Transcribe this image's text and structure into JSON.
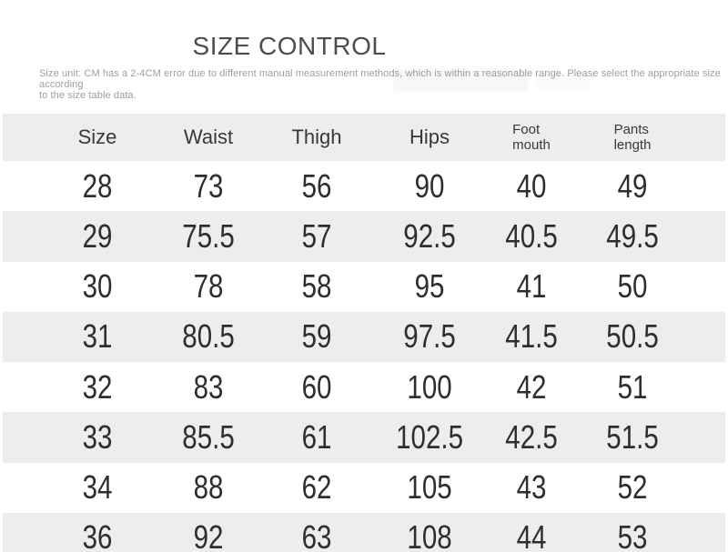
{
  "header": {
    "title": "SIZE CONTROL",
    "note_lines": [
      "Size unit: CM has a 2-4CM error due to different manual measurement methods, which is within a reasonable range. Please select the appropriate size according",
      "to the size table data."
    ]
  },
  "table": {
    "columns": [
      {
        "key": "size",
        "lines": [
          "Size"
        ]
      },
      {
        "key": "waist",
        "lines": [
          "Waist"
        ]
      },
      {
        "key": "thigh",
        "lines": [
          "Thigh"
        ]
      },
      {
        "key": "hips",
        "lines": [
          "Hips"
        ]
      },
      {
        "key": "foot-mouth",
        "lines": [
          "Foot",
          "mouth"
        ]
      },
      {
        "key": "pants-length",
        "lines": [
          "Pants",
          "length"
        ]
      }
    ]
  },
  "chart_data": {
    "type": "table",
    "title": "SIZE CONTROL",
    "unit": "CM",
    "columns": [
      "Size",
      "Waist",
      "Thigh",
      "Hips",
      "Foot mouth",
      "Pants length"
    ],
    "rows": [
      [
        28,
        73,
        56,
        90,
        40,
        49
      ],
      [
        29,
        75.5,
        57,
        92.5,
        40.5,
        49.5
      ],
      [
        30,
        78,
        58,
        95,
        41,
        50
      ],
      [
        31,
        80.5,
        59,
        97.5,
        41.5,
        50.5
      ],
      [
        32,
        83,
        60,
        100,
        42,
        51
      ],
      [
        33,
        85.5,
        61,
        102.5,
        42.5,
        51.5
      ],
      [
        34,
        88,
        62,
        105,
        43,
        52
      ],
      [
        36,
        92,
        63,
        108,
        44,
        53
      ]
    ]
  },
  "colors": {
    "row_stripe": "#ededed",
    "title_text": "#4d4d4d",
    "note_text": "#9e9e9e",
    "cell_text": "#2e2e2e"
  }
}
